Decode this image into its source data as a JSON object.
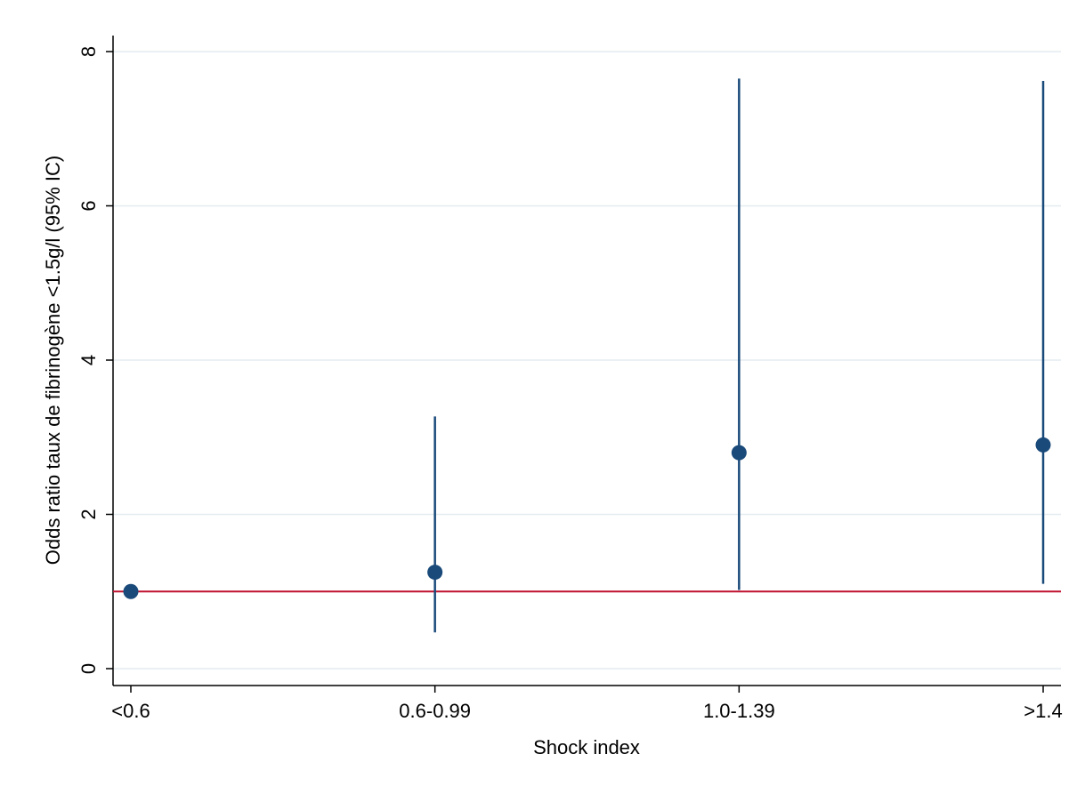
{
  "chart_data": {
    "type": "scatter",
    "xlabel": "Shock index",
    "ylabel": "Odds ratio taux de fibrinogène <1.5g/l (95% IC)",
    "categories": [
      "<0.6",
      "0.6-0.99",
      "1.0-1.39",
      ">1.4"
    ],
    "series": [
      {
        "values": [
          1.0,
          1.25,
          2.8,
          2.9
        ],
        "ci_lower": [
          null,
          0.47,
          1.02,
          1.1
        ],
        "ci_upper": [
          null,
          3.27,
          7.65,
          7.62
        ]
      }
    ],
    "reference_line": {
      "y": 1
    },
    "ylim": [
      0,
      8
    ],
    "yticks": [
      0,
      2,
      4,
      6,
      8
    ],
    "grid": true,
    "colors": {
      "point": "#1a4a7a",
      "errorbar": "#1a4a7a",
      "reference": "#c0102e",
      "grid": "#e4ecef",
      "axis": "#000000"
    }
  }
}
